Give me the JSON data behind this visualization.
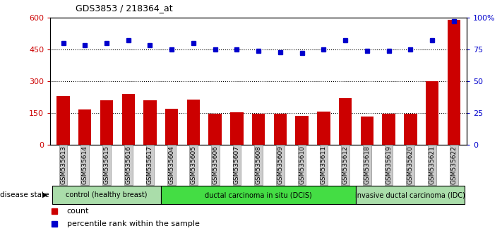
{
  "title": "GDS3853 / 218364_at",
  "samples": [
    "GSM535613",
    "GSM535614",
    "GSM535615",
    "GSM535616",
    "GSM535617",
    "GSM535604",
    "GSM535605",
    "GSM535606",
    "GSM535607",
    "GSM535608",
    "GSM535609",
    "GSM535610",
    "GSM535611",
    "GSM535612",
    "GSM535618",
    "GSM535619",
    "GSM535620",
    "GSM535621",
    "GSM535622"
  ],
  "counts": [
    230,
    168,
    210,
    240,
    210,
    170,
    215,
    148,
    153,
    148,
    148,
    138,
    158,
    220,
    135,
    148,
    148,
    300,
    590
  ],
  "percentiles": [
    80,
    78,
    80,
    82,
    78,
    75,
    80,
    75,
    75,
    74,
    73,
    72,
    75,
    82,
    74,
    74,
    75,
    82,
    97
  ],
  "groups": [
    {
      "label": "control (healthy breast)",
      "start": 0,
      "end": 5,
      "color": "#aaddaa"
    },
    {
      "label": "ductal carcinoma in situ (DCIS)",
      "start": 5,
      "end": 14,
      "color": "#44dd44"
    },
    {
      "label": "invasive ductal carcinoma (IDC)",
      "start": 14,
      "end": 19,
      "color": "#aaddaa"
    }
  ],
  "bar_color": "#cc0000",
  "dot_color": "#0000cc",
  "left_ylim": [
    0,
    600
  ],
  "right_ylim": [
    0,
    100
  ],
  "left_yticks": [
    0,
    150,
    300,
    450,
    600
  ],
  "right_yticks": [
    0,
    25,
    50,
    75,
    100
  ],
  "dotted_vals": [
    150,
    300,
    450
  ],
  "tick_label_bg": "#cccccc"
}
